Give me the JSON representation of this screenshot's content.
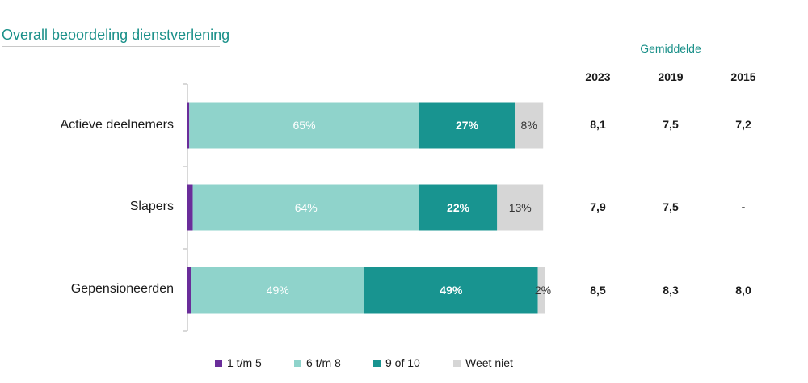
{
  "chart_data": {
    "type": "bar",
    "orientation": "horizontal",
    "stacked": true,
    "title": "Overall beoordeling dienstverlening",
    "categories": [
      "Actieve deelnemers",
      "Slapers",
      "Gepensioneerden"
    ],
    "series": [
      {
        "name": "1 t/m 5",
        "values": [
          0.5,
          1.5,
          1.0
        ],
        "labels": [
          "",
          "",
          ""
        ]
      },
      {
        "name": "6 t/m 8",
        "values": [
          65,
          64,
          49
        ],
        "labels": [
          "65%",
          "64%",
          "49%"
        ]
      },
      {
        "name": "9 of 10",
        "values": [
          27,
          22,
          49
        ],
        "labels": [
          "27%",
          "22%",
          "49%"
        ]
      },
      {
        "name": "Weet niet",
        "values": [
          8,
          13,
          2
        ],
        "labels": [
          "8%",
          "13%",
          "2%"
        ]
      }
    ],
    "xlim": [
      0,
      100
    ],
    "grid": false,
    "legend_position": "bottom"
  },
  "colors": {
    "series": [
      "#6a2d9a",
      "#8fd3cb",
      "#189490",
      "#d6d6d6"
    ],
    "title": "#1a9089",
    "label_light": "#ffffff",
    "label_dark": "#333333"
  },
  "averages": {
    "header": "Gemiddelde",
    "years": [
      "2023",
      "2019",
      "2015"
    ],
    "rows": [
      [
        "8,1",
        "7,5",
        "7,2"
      ],
      [
        "7,9",
        "7,5",
        "-"
      ],
      [
        "8,5",
        "8,3",
        "8,0"
      ]
    ]
  }
}
